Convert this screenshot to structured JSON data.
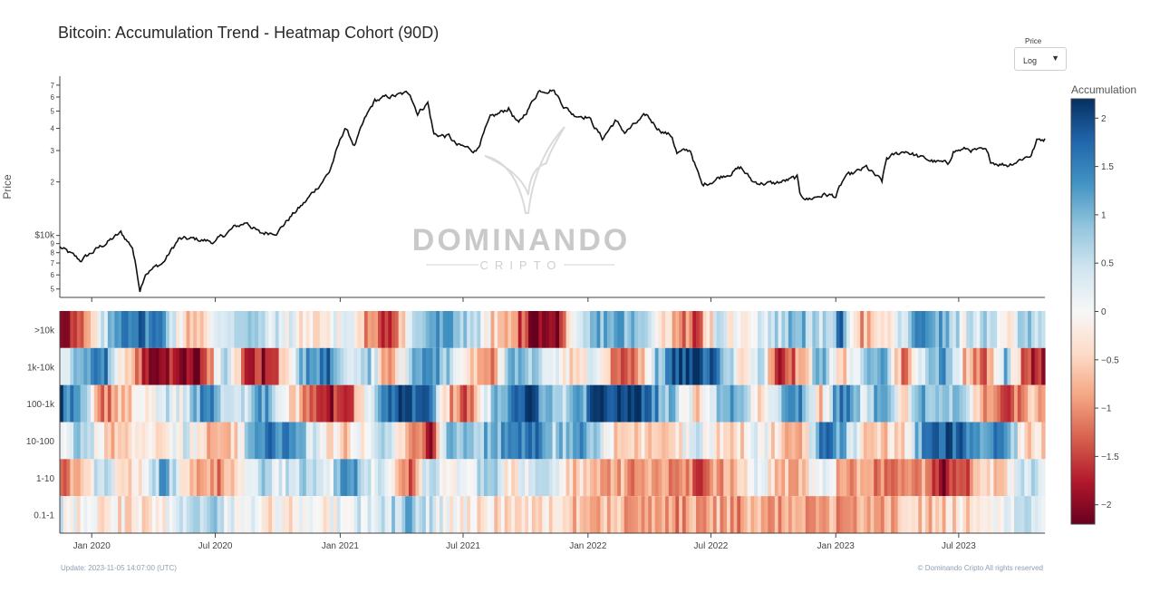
{
  "title": "Bitcoin: Accumulation Trend - Heatmap Cohort (90D)",
  "controls": {
    "scale_label": "Price",
    "scale_value": "Log",
    "scale_arrow": "▼"
  },
  "footer": {
    "update": "Update: 2023-11-05 14:07:00 (UTC)",
    "copyright": "© Dominando Cripto All rights reserved"
  },
  "watermark": {
    "brand": "DOMINANDO",
    "sub": "CRIPTO"
  },
  "colorbar": {
    "title": "Accumulation",
    "ticks": [
      "2",
      "1.5",
      "1",
      "0.5",
      "0",
      "−0.5",
      "−1",
      "−1.5",
      "−2"
    ],
    "range": [
      -2.2,
      2.2
    ],
    "colors": [
      "#67001f",
      "#b2182b",
      "#d6604d",
      "#f4a582",
      "#fddbc7",
      "#f7f7f7",
      "#d1e5f0",
      "#92c5de",
      "#4393c3",
      "#2166ac",
      "#053061"
    ]
  },
  "chart_data": [
    {
      "type": "line",
      "ylabel": "Price",
      "yscale": "log",
      "ytick_labels": [
        "$10k",
        "2",
        "3",
        "4",
        "5",
        "6",
        "7",
        "5",
        "6",
        "7",
        "8",
        "9"
      ],
      "ytick_values_k": [
        10,
        20,
        30,
        40,
        50,
        60,
        70,
        5,
        6,
        7,
        8,
        9
      ],
      "series": [
        {
          "x": [
            "2019-11-15",
            "2019-12-15",
            "2020-01-15",
            "2020-02-13",
            "2020-03-01",
            "2020-03-12",
            "2020-03-20",
            "2020-04-15",
            "2020-05-08",
            "2020-06-01",
            "2020-07-01",
            "2020-07-28",
            "2020-08-17",
            "2020-09-05",
            "2020-10-01",
            "2020-10-21",
            "2020-11-10",
            "2020-11-30",
            "2020-12-16",
            "2021-01-08",
            "2021-01-22",
            "2021-02-08",
            "2021-02-21",
            "2021-03-13",
            "2021-04-14",
            "2021-04-25",
            "2021-05-10",
            "2021-05-19",
            "2021-06-10",
            "2021-06-22",
            "2021-07-20",
            "2021-08-10",
            "2021-09-06",
            "2021-09-21",
            "2021-10-08",
            "2021-10-20",
            "2021-11-10",
            "2021-11-26",
            "2021-12-10",
            "2022-01-01",
            "2022-01-22",
            "2022-02-10",
            "2022-02-24",
            "2022-03-28",
            "2022-04-15",
            "2022-05-05",
            "2022-05-12",
            "2022-06-01",
            "2022-06-18",
            "2022-07-10",
            "2022-08-14",
            "2022-09-01",
            "2022-10-01",
            "2022-11-05",
            "2022-11-09",
            "2022-11-21",
            "2022-12-15",
            "2023-01-01",
            "2023-01-14",
            "2023-02-15",
            "2023-03-10",
            "2023-03-17",
            "2023-04-14",
            "2023-05-10",
            "2023-06-15",
            "2023-06-23",
            "2023-07-13",
            "2023-08-10",
            "2023-08-17",
            "2023-09-11",
            "2023-10-01",
            "2023-10-16",
            "2023-10-24",
            "2023-11-05"
          ],
          "y": [
            8.6,
            7.2,
            8.7,
            10.3,
            8.6,
            5.0,
            6.2,
            7.0,
            9.5,
            9.5,
            9.2,
            11.0,
            11.9,
            10.2,
            10.6,
            12.9,
            15.3,
            19.0,
            22.8,
            40.5,
            32.0,
            46.0,
            57.0,
            60.0,
            63.0,
            49.0,
            56.0,
            37.0,
            36.0,
            32.0,
            30.0,
            45.0,
            52.0,
            42.0,
            54.0,
            65.0,
            67.0,
            54.0,
            48.0,
            47.0,
            35.0,
            44.0,
            38.0,
            47.0,
            40.0,
            36.0,
            29.0,
            30.0,
            19.0,
            21.0,
            24.0,
            20.0,
            19.5,
            21.0,
            17.0,
            16.0,
            17.0,
            16.6,
            21.0,
            24.0,
            20.0,
            27.0,
            30.0,
            27.0,
            25.0,
            30.0,
            30.5,
            29.5,
            26.0,
            25.0,
            27.0,
            28.5,
            34.0,
            35.0
          ]
        }
      ]
    },
    {
      "type": "heatmap",
      "colorbar_title": "Accumulation",
      "zrange": [
        -2.2,
        2.2
      ],
      "rows": [
        ">10k",
        "1k-10k",
        "100-1k",
        "10-100",
        "1-10",
        "0.1-1"
      ],
      "x_tick_labels": [
        "Jan 2020",
        "Jul 2020",
        "Jan 2021",
        "Jul 2021",
        "Jan 2022",
        "Jul 2022",
        "Jan 2023",
        "Jul 2023"
      ],
      "x_start": "2019-11-15",
      "x_end": "2023-11-05",
      "x": [
        "2019-12",
        "2020-01",
        "2020-02",
        "2020-03",
        "2020-04",
        "2020-05",
        "2020-06",
        "2020-07",
        "2020-08",
        "2020-09",
        "2020-10",
        "2020-11",
        "2020-12",
        "2021-01",
        "2021-02",
        "2021-03",
        "2021-04",
        "2021-05",
        "2021-06",
        "2021-07",
        "2021-08",
        "2021-09",
        "2021-10",
        "2021-11",
        "2021-12",
        "2022-01",
        "2022-02",
        "2022-03",
        "2022-04",
        "2022-05",
        "2022-06",
        "2022-07",
        "2022-08",
        "2022-09",
        "2022-10",
        "2022-11",
        "2022-12",
        "2023-01",
        "2023-02",
        "2023-03",
        "2023-04",
        "2023-05",
        "2023-06",
        "2023-07",
        "2023-08",
        "2023-09",
        "2023-10",
        "2023-11"
      ],
      "z": [
        [
          -1.8,
          -1.5,
          0.2,
          1.8,
          1.6,
          1.4,
          -0.6,
          -0.4,
          0.5,
          1.0,
          0.3,
          0.2,
          -0.3,
          -0.2,
          0.4,
          -1.2,
          -1.5,
          0.3,
          1.2,
          1.0,
          0.8,
          -0.5,
          -1.0,
          -2.0,
          -2.1,
          -0.3,
          1.0,
          1.2,
          0.8,
          0.2,
          -0.8,
          -1.4,
          0.3,
          -0.2,
          0.4,
          0.6,
          1.2,
          0.2,
          1.5,
          -0.8,
          -0.6,
          0.4,
          1.6,
          1.0,
          0.2,
          0.6,
          -0.3,
          0.8
        ],
        [
          0.3,
          0.8,
          1.7,
          -0.3,
          -1.6,
          -1.8,
          -2.0,
          -1.7,
          1.2,
          -1.6,
          -1.8,
          -0.5,
          1.4,
          1.6,
          0.6,
          0.9,
          -1.2,
          0.8,
          1.5,
          0.5,
          -0.4,
          -0.9,
          1.0,
          0.6,
          0.4,
          -0.6,
          0.5,
          -1.3,
          -1.1,
          0.8,
          1.9,
          2.0,
          1.6,
          -0.2,
          0.7,
          -1.8,
          -0.9,
          1.2,
          -0.8,
          0.6,
          1.4,
          -1.2,
          0.4,
          1.6,
          -0.6,
          -1.1,
          0.9,
          -1.6
        ],
        [
          1.8,
          1.2,
          -1.2,
          -0.6,
          -0.3,
          0.4,
          0.2,
          1.6,
          0.6,
          0.3,
          1.5,
          -0.2,
          -1.0,
          -1.8,
          -1.5,
          0.2,
          1.8,
          2.0,
          1.4,
          -1.0,
          -1.5,
          0.8,
          1.6,
          1.9,
          0.5,
          0.8,
          1.8,
          2.1,
          2.2,
          1.4,
          0.6,
          -0.4,
          0.8,
          1.2,
          -0.3,
          0.9,
          1.6,
          -0.6,
          1.8,
          0.4,
          1.4,
          -0.6,
          1.2,
          1.0,
          0.5,
          -1.2,
          -1.4,
          -0.8
        ],
        [
          0.2,
          0.8,
          -0.4,
          -0.6,
          0.1,
          -0.2,
          0.3,
          -0.6,
          -1.2,
          0.4,
          1.8,
          1.4,
          0.6,
          -0.3,
          -0.5,
          0.2,
          0.6,
          -0.8,
          -1.6,
          1.2,
          0.9,
          1.0,
          1.5,
          1.8,
          0.5,
          1.4,
          0.8,
          -0.6,
          -0.5,
          -0.4,
          -0.3,
          0.6,
          -0.4,
          -0.5,
          0.2,
          -0.6,
          -0.9,
          1.6,
          1.2,
          -0.3,
          -0.6,
          -0.4,
          1.4,
          1.8,
          1.6,
          1.2,
          1.4,
          -0.5
        ],
        [
          -1.2,
          -0.4,
          0.8,
          -0.3,
          -0.2,
          1.2,
          -0.5,
          -0.9,
          -1.0,
          0.3,
          0.6,
          0.4,
          0.6,
          0.2,
          1.4,
          0.4,
          0.3,
          -1.2,
          1.0,
          -0.2,
          0.4,
          0.7,
          -0.4,
          0.5,
          0.3,
          -0.5,
          -0.7,
          -0.8,
          -0.9,
          -0.7,
          -1.1,
          -1.3,
          -1.0,
          -0.6,
          0.2,
          -0.7,
          -0.6,
          0.4,
          -0.8,
          -0.9,
          -1.0,
          -0.8,
          -1.0,
          -1.8,
          -1.5,
          -0.5,
          -0.4,
          0.6
        ],
        [
          0.3,
          -0.2,
          -0.3,
          -0.3,
          -0.2,
          -0.1,
          0.2,
          0.8,
          0.4,
          0.2,
          -0.2,
          -0.2,
          0.1,
          -0.1,
          0.2,
          0.4,
          0.6,
          0.9,
          0.4,
          -0.1,
          -0.2,
          -0.3,
          -0.3,
          -0.2,
          -0.3,
          -0.6,
          -0.7,
          -0.8,
          -0.8,
          -0.9,
          -1.0,
          -0.9,
          -0.8,
          -0.9,
          -0.7,
          -0.8,
          -0.9,
          -1.0,
          -0.8,
          -0.7,
          -0.9,
          -0.7,
          -0.6,
          -0.5,
          -0.4,
          -0.3,
          0.2,
          0.3
        ]
      ]
    }
  ]
}
